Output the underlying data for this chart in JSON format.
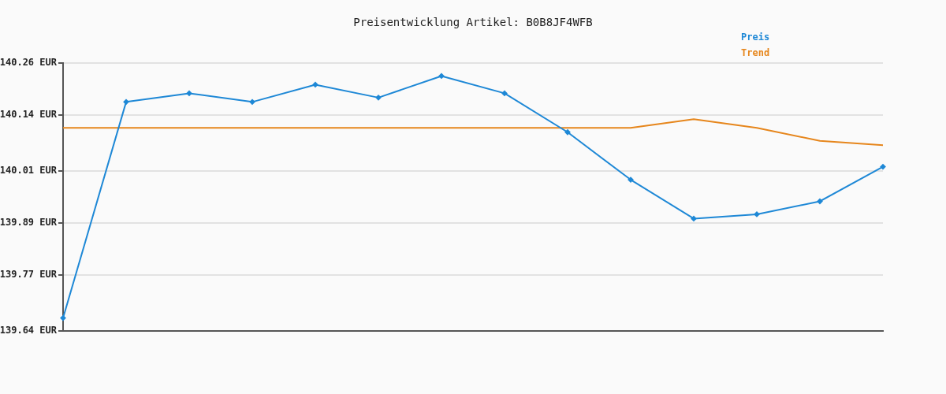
{
  "chart_data": {
    "type": "line",
    "title": "Preisentwicklung Artikel: B0B8JF4WFB",
    "categories": [
      null,
      null,
      null,
      null,
      null,
      null,
      null,
      null,
      null,
      null,
      null,
      null,
      null,
      null
    ],
    "series": [
      {
        "name": "Preis",
        "color": "#1e88d6",
        "marker": "diamond",
        "values": [
          139.67,
          140.17,
          140.19,
          140.17,
          140.21,
          140.18,
          140.23,
          140.19,
          140.1,
          139.99,
          139.9,
          139.91,
          139.94,
          140.02
        ]
      },
      {
        "name": "Trend",
        "color": "#e6861c",
        "marker": "none",
        "values": [
          140.11,
          140.11,
          140.11,
          140.11,
          140.11,
          140.11,
          140.11,
          140.11,
          140.11,
          140.11,
          140.13,
          140.11,
          140.08,
          140.07
        ]
      }
    ],
    "ylim": [
      139.64,
      140.26
    ],
    "yticks": [
      {
        "value": 139.64,
        "label": "139.64 EUR"
      },
      {
        "value": 139.77,
        "label": "139.77 EUR"
      },
      {
        "value": 139.89,
        "label": "139.89 EUR"
      },
      {
        "value": 140.01,
        "label": "140.01 EUR"
      },
      {
        "value": 140.14,
        "label": "140.14 EUR"
      },
      {
        "value": 140.26,
        "label": "140.26 EUR"
      }
    ],
    "grid": "y",
    "legend": "top right",
    "line_style": "solid"
  }
}
